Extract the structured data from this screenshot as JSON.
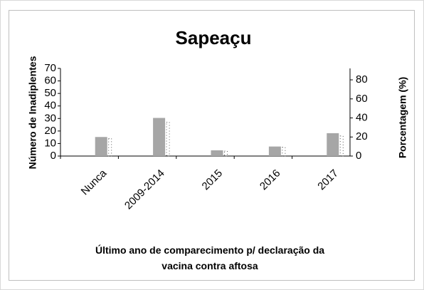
{
  "chart_data": {
    "type": "bar",
    "title": "Sapeaçu",
    "xlabel": "Último ano de comparecimento p/ declaração da vacina contra aftosa",
    "ylabel": "Número de Inadiplentes",
    "y2label": "Porcentagem (%)",
    "categories": [
      "Nunca",
      "2009-2014",
      "2015",
      "2016",
      "2017"
    ],
    "series": [
      {
        "color": "#555555",
        "values": [
          14,
          27,
          4,
          7,
          16
        ]
      },
      {
        "color": "#a6a6a6",
        "values": [
          20,
          40,
          6,
          10,
          24
        ],
        "axis": "y2"
      }
    ],
    "ylim": [
      0,
      70
    ],
    "yticks": [
      0,
      10,
      20,
      30,
      40,
      50,
      60,
      70
    ],
    "y2lim": [
      0,
      92
    ],
    "y2ticks": [
      0,
      20,
      40,
      60,
      80
    ]
  }
}
